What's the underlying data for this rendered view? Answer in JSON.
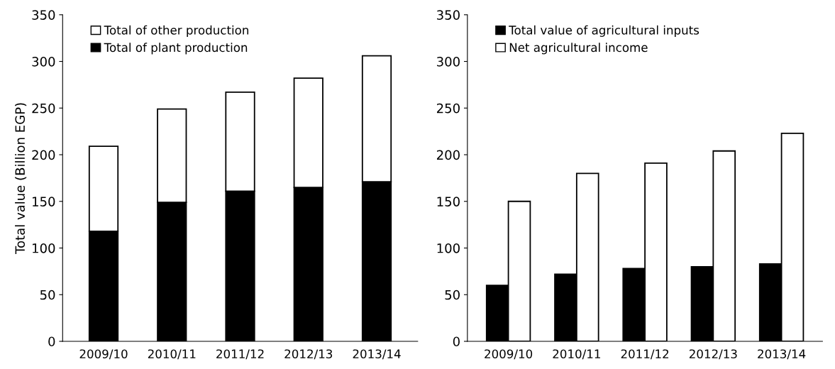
{
  "chart_data": [
    {
      "type": "bar",
      "stacked": true,
      "ylabel": "Total value (Billion EGP)",
      "categories": [
        "2009/10",
        "2010/11",
        "2011/12",
        "2012/13",
        "2013/14"
      ],
      "series": [
        {
          "name": "Total of plant production",
          "color": "#000000",
          "values": [
            118,
            149,
            161,
            165,
            171
          ]
        },
        {
          "name": "Total of other production",
          "color": "#ffffff",
          "values": [
            91,
            100,
            106,
            117,
            135
          ]
        }
      ],
      "ylim": [
        0,
        350
      ],
      "yticks": [
        0,
        50,
        100,
        150,
        200,
        250,
        300,
        350
      ],
      "legend": "top left",
      "grid": false
    },
    {
      "type": "bar",
      "categories": [
        "2009/10",
        "2010/11",
        "2011/12",
        "2012/13",
        "2013/14"
      ],
      "series": [
        {
          "name": "Total value of agricultural inputs",
          "color": "#000000",
          "values": [
            60,
            72,
            78,
            80,
            83
          ]
        },
        {
          "name": "Net agricultural income",
          "color": "#ffffff",
          "values": [
            150,
            180,
            191,
            204,
            223
          ]
        }
      ],
      "ylim": [
        0,
        350
      ],
      "yticks": [
        0,
        50,
        100,
        150,
        200,
        250,
        300,
        350
      ],
      "legend": "top left",
      "grid": false
    }
  ]
}
